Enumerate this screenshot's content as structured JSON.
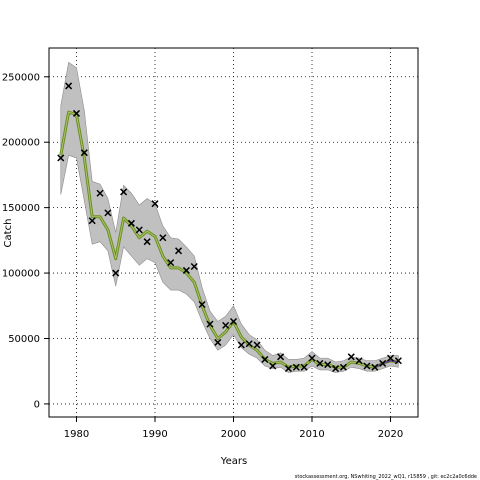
{
  "chart_data": {
    "type": "line",
    "title": "",
    "xlabel": "Years",
    "ylabel": "Catch",
    "xlim": [
      1976.5,
      2023.5
    ],
    "ylim": [
      -10000,
      272000
    ],
    "x_ticks": [
      1980,
      1990,
      2000,
      2010,
      2020
    ],
    "y_ticks": [
      0,
      50000,
      100000,
      150000,
      200000,
      250000
    ],
    "x_tick_labels": [
      "1980",
      "1990",
      "2000",
      "2010",
      "2020"
    ],
    "y_tick_labels": [
      "0",
      "50000",
      "100000",
      "150000",
      "200000",
      "250000"
    ],
    "grid": true,
    "series": [
      {
        "kind": "band",
        "color": "#c0c0c0",
        "x": [
          1978,
          1979,
          1980,
          1981,
          1982,
          1983,
          1984,
          1985,
          1986,
          1987,
          1988,
          1989,
          1990,
          1991,
          1992,
          1993,
          1994,
          1995,
          1996,
          1997,
          1998,
          1999,
          2000,
          2001,
          2002,
          2003,
          2004,
          2005,
          2006,
          2007,
          2008,
          2009,
          2010,
          2011,
          2012,
          2013,
          2014,
          2015,
          2016,
          2017,
          2018,
          2019,
          2020,
          2021
        ],
        "lower": [
          160000,
          190000,
          188000,
          155000,
          122000,
          124000,
          117000,
          90000,
          120000,
          113000,
          106000,
          111000,
          108000,
          93000,
          87000,
          87000,
          84000,
          78000,
          63000,
          50000,
          41000,
          45000,
          53000,
          43000,
          38000,
          35000,
          29000,
          27000,
          28000,
          24000,
          25000,
          25000,
          29000,
          26000,
          26000,
          24000,
          25000,
          28000,
          27000,
          25000,
          25000,
          27000,
          29000,
          28000
        ],
        "upper": [
          228000,
          261000,
          257000,
          224000,
          170000,
          168000,
          157000,
          131000,
          167000,
          161000,
          152000,
          157000,
          153000,
          136000,
          127000,
          126000,
          120000,
          113000,
          89000,
          71000,
          63000,
          67000,
          75000,
          61000,
          53000,
          49000,
          41000,
          37000,
          39000,
          34000,
          34000,
          35000,
          40000,
          35000,
          35000,
          32000,
          33000,
          36000,
          35000,
          33000,
          33000,
          35000,
          37000,
          37000
        ]
      },
      {
        "kind": "line",
        "color": "#6b8e23",
        "x": [
          1978,
          1979,
          1980,
          1981,
          1982,
          1983,
          1984,
          1985,
          1986,
          1987,
          1988,
          1989,
          1990,
          1991,
          1992,
          1993,
          1994,
          1995,
          1996,
          1997,
          1998,
          1999,
          2000,
          2001,
          2002,
          2003,
          2004,
          2005,
          2006,
          2007,
          2008,
          2009,
          2010,
          2011,
          2012,
          2013,
          2014,
          2015,
          2016,
          2017,
          2018,
          2019,
          2020,
          2021
        ],
        "values": [
          190000,
          223000,
          221000,
          188000,
          143000,
          143000,
          133000,
          111000,
          142000,
          136000,
          127000,
          132000,
          128000,
          113000,
          104000,
          104000,
          100000,
          93000,
          75000,
          60000,
          50000,
          55000,
          63000,
          51000,
          45000,
          41000,
          34000,
          31000,
          32000,
          28000,
          29000,
          29000,
          34000,
          30000,
          30000,
          28000,
          28000,
          32000,
          31000,
          29000,
          28000,
          31000,
          33000,
          32000
        ]
      },
      {
        "kind": "scatter",
        "marker": "x",
        "color": "#000000",
        "x": [
          1978,
          1979,
          1980,
          1981,
          1982,
          1983,
          1984,
          1985,
          1986,
          1987,
          1988,
          1989,
          1990,
          1991,
          1992,
          1993,
          1994,
          1995,
          1996,
          1997,
          1998,
          1999,
          2000,
          2001,
          2002,
          2003,
          2004,
          2005,
          2006,
          2007,
          2008,
          2009,
          2010,
          2011,
          2012,
          2013,
          2014,
          2015,
          2016,
          2017,
          2018,
          2019,
          2020,
          2021
        ],
        "values": [
          188000,
          243000,
          222000,
          192000,
          140000,
          161000,
          146000,
          100000,
          162000,
          138000,
          133000,
          124000,
          153000,
          127000,
          108000,
          117000,
          102000,
          105000,
          76000,
          61000,
          47000,
          60000,
          63000,
          45000,
          46000,
          45000,
          34000,
          29000,
          36000,
          27000,
          28000,
          28000,
          35000,
          31000,
          30000,
          27000,
          28000,
          36000,
          33000,
          29000,
          28000,
          31000,
          35000,
          33000
        ]
      }
    ]
  },
  "footer": {
    "note": "stockassessment.org, NSwhiting_2022_wQ1, r15859 , git: ec2c2a0c6dde"
  }
}
